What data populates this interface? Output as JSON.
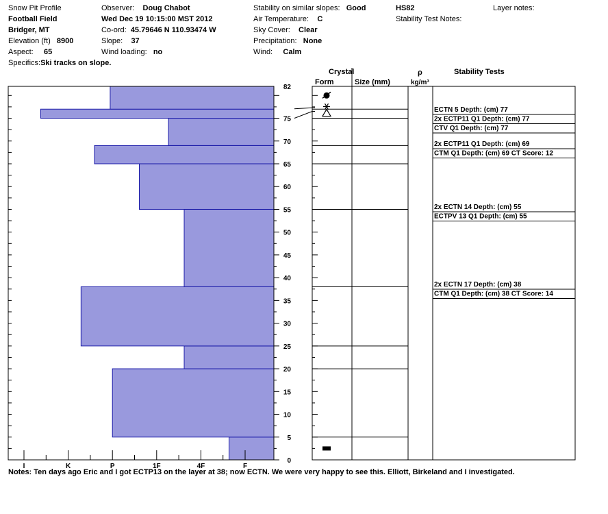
{
  "header": {
    "title": "Snow Pit Profile",
    "location": "Football Field",
    "region": "Bridger, MT",
    "elevation_label": "Elevation (ft)",
    "elevation": "8900",
    "aspect_label": "Aspect:",
    "aspect": "65",
    "specifics_label": "Specifics:",
    "specifics": "Ski tracks on slope.",
    "observer_label": "Observer:",
    "observer": "Doug Chabot",
    "datetime": "Wed Dec 19 10:15:00 MST 2012",
    "coord_label": "Co-ord:",
    "coord": "45.79646 N 110.93474 W",
    "slope_label": "Slope:",
    "slope": "37",
    "wind_loading_label": "Wind loading:",
    "wind_loading": "no",
    "stability_label": "Stability on similar slopes:",
    "stability": "Good",
    "air_temp_label": "Air Temperature:",
    "air_temp": "C",
    "sky_label": "Sky Cover:",
    "sky": "Clear",
    "precip_label": "Precipitation:",
    "precip": "None",
    "wind_label": "Wind:",
    "wind": "Calm",
    "hs": "HS82",
    "stability_notes_label": "Stability Test Notes:",
    "layer_notes_label": "Layer notes:"
  },
  "table_headers": {
    "crystal": "Crystal",
    "form": "Form",
    "size": "Size (mm)",
    "rho": "ρ",
    "density_unit": "kg/m³",
    "stability_tests": "Stability Tests"
  },
  "notes": "Notes:  Ten days ago Eric and I got ECTP13 on the layer at 38; now ECTN.  We were very happy to see this.  Elliott, Birkeland and I investigated.",
  "chart_data": {
    "type": "bar",
    "orientation": "horizontal",
    "description_axis": "snow height (cm)",
    "ylim": [
      0,
      82
    ],
    "y_ticks": [
      0,
      5,
      10,
      15,
      20,
      25,
      30,
      35,
      40,
      45,
      50,
      55,
      60,
      65,
      70,
      75,
      82
    ],
    "hardness_scale": [
      "I",
      "K",
      "P",
      "1F",
      "4F",
      "F"
    ],
    "hardness_ticks": [
      0,
      1,
      2,
      3,
      4,
      5
    ],
    "hardness_axis_direction": "reversed",
    "layers": [
      {
        "bottom": 0,
        "top": 5,
        "hardness": 1.0
      },
      {
        "bottom": 5,
        "top": 20,
        "hardness": 3.6
      },
      {
        "bottom": 20,
        "top": 25,
        "hardness": 2.0
      },
      {
        "bottom": 25,
        "top": 38,
        "hardness": 4.3
      },
      {
        "bottom": 38,
        "top": 55,
        "hardness": 2.0
      },
      {
        "bottom": 55,
        "top": 65,
        "hardness": 3.0
      },
      {
        "bottom": 65,
        "top": 69,
        "hardness": 4.0
      },
      {
        "bottom": 69,
        "top": 75,
        "hardness": 2.35
      },
      {
        "bottom": 75,
        "top": 77,
        "hardness": 5.2
      },
      {
        "bottom": 77,
        "top": 82,
        "hardness": 3.65
      }
    ],
    "layer_boundaries": [
      5,
      20,
      25,
      38,
      55,
      65,
      69,
      75,
      77,
      82
    ],
    "crystal_symbols": [
      {
        "height": 80,
        "symbol": "surface-hoar"
      },
      {
        "height": 76.5,
        "symbol": "depth-hoar-star"
      },
      {
        "height": 2.5,
        "symbol": "melt-crust"
      }
    ],
    "stability_tests": [
      {
        "height": 77,
        "text": "ECTN 5  Depth: (cm) 77"
      },
      {
        "height": 77,
        "text": "2x ECTP11 Q1 Depth: (cm) 77"
      },
      {
        "height": 77,
        "text": "CTV Q1 Depth: (cm) 77"
      },
      {
        "height": 69,
        "text": "2x ECTP11 Q1 Depth: (cm) 69"
      },
      {
        "height": 69,
        "text": "CTM Q1 Depth: (cm) 69 CT Score: 12"
      },
      {
        "height": 55,
        "text": "2x ECTN 14  Depth: (cm) 55"
      },
      {
        "height": 55,
        "text": "ECTPV 13 Q1 Depth: (cm) 55"
      },
      {
        "height": 38,
        "text": "2x ECTN 17  Depth: (cm) 38"
      },
      {
        "height": 38,
        "text": "CTM Q1 Depth: (cm) 38 CT Score: 14"
      }
    ],
    "colors": {
      "bar_fill": "#9999dd",
      "bar_stroke": "#1a1aa8",
      "line": "#000000"
    }
  }
}
